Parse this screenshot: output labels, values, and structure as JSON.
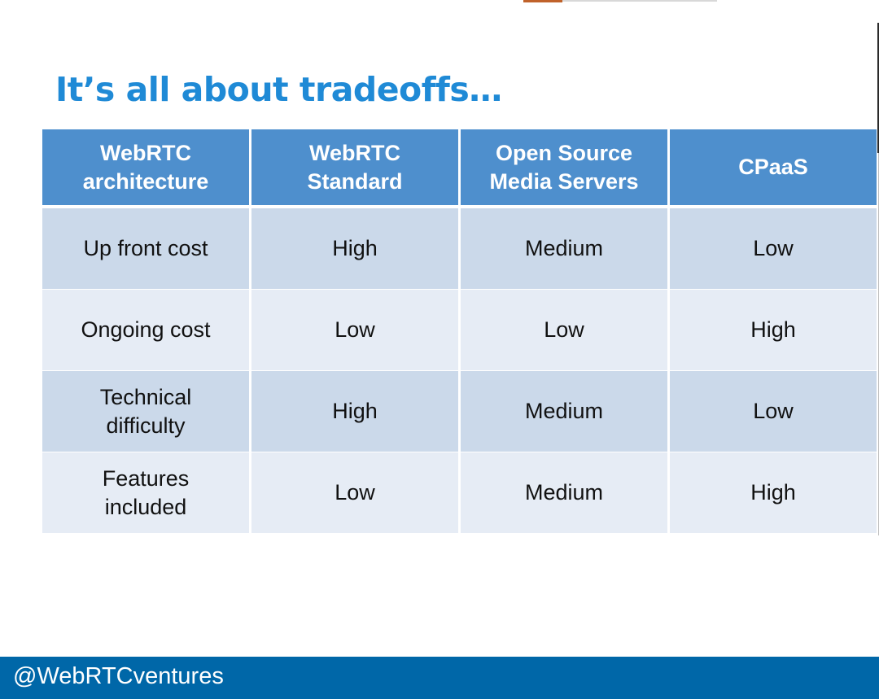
{
  "slide": {
    "title": "It’s all about tradeoffs…"
  },
  "table": {
    "headers": [
      "WebRTC architecture",
      "WebRTC Standard",
      "Open Source Media Servers",
      "CPaaS"
    ],
    "rows": [
      [
        "Up front cost",
        "High",
        "Medium",
        "Low"
      ],
      [
        "Ongoing cost",
        "Low",
        "Low",
        "High"
      ],
      [
        "Technical difficulty",
        "High",
        "Medium",
        "Low"
      ],
      [
        "Features included",
        "Low",
        "Medium",
        "High"
      ]
    ]
  },
  "footer": {
    "handle": "@WebRTCventures"
  },
  "colors": {
    "title": "#1f8ad6",
    "header_bg": "#4e8fcd",
    "row_odd": "#cbd9ea",
    "row_even": "#e6ecf5",
    "footer_bg": "#0067a8"
  }
}
